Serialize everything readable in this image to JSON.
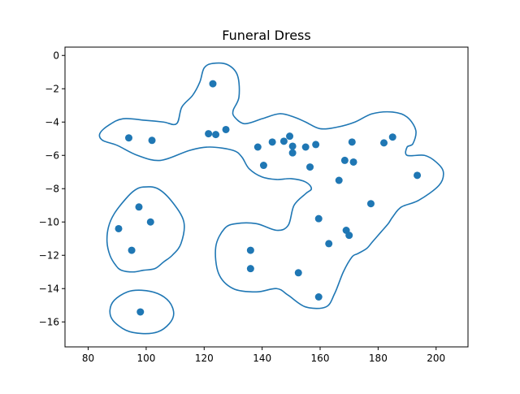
{
  "chart_data": {
    "type": "scatter",
    "title": "Funeral Dress",
    "xlabel": "",
    "ylabel": "",
    "xlim": [
      72,
      211
    ],
    "ylim": [
      -17.5,
      0.5
    ],
    "xticks": [
      80,
      100,
      120,
      140,
      160,
      180,
      200
    ],
    "yticks": [
      0,
      -2,
      -4,
      -6,
      -8,
      -10,
      -12,
      -14,
      -16
    ],
    "grid": false,
    "colors": {
      "series": "#1f77b4",
      "axis": "#000000",
      "background": "#ffffff"
    },
    "series": [
      {
        "points": [
          [
            123,
            -1.7
          ],
          [
            94,
            -4.95
          ],
          [
            102,
            -5.1
          ],
          [
            121.5,
            -4.7
          ],
          [
            124,
            -4.75
          ],
          [
            127.5,
            -4.45
          ],
          [
            138.5,
            -5.5
          ],
          [
            143.5,
            -5.2
          ],
          [
            147.5,
            -5.15
          ],
          [
            149.5,
            -4.85
          ],
          [
            150.5,
            -5.45
          ],
          [
            150.5,
            -5.85
          ],
          [
            155,
            -5.5
          ],
          [
            158.5,
            -5.35
          ],
          [
            140.5,
            -6.6
          ],
          [
            156.5,
            -6.7
          ],
          [
            168.5,
            -6.3
          ],
          [
            171,
            -5.2
          ],
          [
            171.5,
            -6.4
          ],
          [
            182,
            -5.25
          ],
          [
            185,
            -4.9
          ],
          [
            193.5,
            -7.2
          ],
          [
            166.5,
            -7.5
          ],
          [
            177.5,
            -8.9
          ],
          [
            159.5,
            -9.8
          ],
          [
            169,
            -10.5
          ],
          [
            170,
            -10.8
          ],
          [
            163,
            -11.3
          ],
          [
            136,
            -11.7
          ],
          [
            136,
            -12.8
          ],
          [
            152.5,
            -13.05
          ],
          [
            159.5,
            -14.5
          ],
          [
            97.5,
            -9.1
          ],
          [
            101.5,
            -10.0
          ],
          [
            90.5,
            -10.4
          ],
          [
            95,
            -11.7
          ],
          [
            98,
            -15.4
          ]
        ]
      }
    ],
    "contours": [
      [
        [
          110.5,
          -4.1
        ],
        [
          112.3,
          -3.1
        ],
        [
          116,
          -2.4
        ],
        [
          118.5,
          -1.6
        ],
        [
          120,
          -0.75
        ],
        [
          123,
          -0.48
        ],
        [
          128,
          -0.55
        ],
        [
          131.5,
          -1.2
        ],
        [
          132,
          -2.5
        ],
        [
          130,
          -3.3
        ],
        [
          130.5,
          -3.7
        ],
        [
          134,
          -4.1
        ],
        [
          140,
          -3.8
        ],
        [
          146,
          -3.5
        ],
        [
          151,
          -3.7
        ],
        [
          155,
          -4.0
        ],
        [
          160,
          -4.4
        ],
        [
          166,
          -4.3
        ],
        [
          172,
          -4.0
        ],
        [
          178,
          -3.5
        ],
        [
          185,
          -3.4
        ],
        [
          190,
          -3.7
        ],
        [
          193,
          -4.5
        ],
        [
          192,
          -5.3
        ],
        [
          190,
          -5.5
        ],
        [
          190,
          -6.0
        ],
        [
          196,
          -6.0
        ],
        [
          200,
          -6.4
        ],
        [
          202.5,
          -7.0
        ],
        [
          201,
          -7.8
        ],
        [
          194,
          -8.7
        ],
        [
          188,
          -9.1
        ],
        [
          185,
          -9.7
        ],
        [
          183.5,
          -10.1
        ],
        [
          181,
          -10.6
        ],
        [
          178,
          -11.2
        ],
        [
          176,
          -11.6
        ],
        [
          173,
          -11.9
        ],
        [
          171,
          -12.1
        ],
        [
          168,
          -13.0
        ],
        [
          165,
          -14.3
        ],
        [
          162,
          -15.1
        ],
        [
          155,
          -15.1
        ],
        [
          149,
          -14.4
        ],
        [
          145,
          -14.0
        ],
        [
          138,
          -14.2
        ],
        [
          130,
          -14.0
        ],
        [
          125,
          -13.1
        ],
        [
          124,
          -11.5
        ],
        [
          127,
          -10.4
        ],
        [
          131,
          -10.1
        ],
        [
          138,
          -10.1
        ],
        [
          145,
          -10.5
        ],
        [
          149,
          -10.2
        ],
        [
          151,
          -9.0
        ],
        [
          155,
          -8.3
        ],
        [
          157,
          -8.0
        ],
        [
          155,
          -7.6
        ],
        [
          150,
          -7.4
        ],
        [
          145,
          -7.45
        ],
        [
          140,
          -7.3
        ],
        [
          135.5,
          -6.8
        ],
        [
          133,
          -6.1
        ],
        [
          130,
          -5.7
        ],
        [
          122,
          -5.5
        ],
        [
          115,
          -5.7
        ],
        [
          105,
          -6.3
        ],
        [
          97,
          -6.0
        ],
        [
          90,
          -5.4
        ],
        [
          85,
          -5.1
        ],
        [
          84,
          -4.7
        ],
        [
          87,
          -4.2
        ],
        [
          92,
          -3.8
        ],
        [
          100,
          -3.9
        ],
        [
          106,
          -4.0
        ],
        [
          110.5,
          -4.1
        ]
      ],
      [
        [
          99,
          -7.9
        ],
        [
          104,
          -8.0
        ],
        [
          109,
          -8.8
        ],
        [
          113,
          -10.0
        ],
        [
          112,
          -11.3
        ],
        [
          109,
          -12.0
        ],
        [
          106,
          -12.4
        ],
        [
          103,
          -12.8
        ],
        [
          99,
          -12.9
        ],
        [
          95.5,
          -13.0
        ],
        [
          91.5,
          -12.9
        ],
        [
          89.5,
          -12.6
        ],
        [
          87.5,
          -12.0
        ],
        [
          86.5,
          -11.2
        ],
        [
          87,
          -10.3
        ],
        [
          89,
          -9.5
        ],
        [
          93,
          -8.6
        ],
        [
          96,
          -8.1
        ],
        [
          99,
          -7.9
        ]
      ],
      [
        [
          98.5,
          -14.1
        ],
        [
          104,
          -14.3
        ],
        [
          108,
          -14.8
        ],
        [
          109.5,
          -15.5
        ],
        [
          108,
          -16.1
        ],
        [
          104,
          -16.6
        ],
        [
          98.5,
          -16.7
        ],
        [
          93,
          -16.5
        ],
        [
          88.5,
          -15.9
        ],
        [
          87.5,
          -15.3
        ],
        [
          89,
          -14.7
        ],
        [
          93.5,
          -14.2
        ],
        [
          98.5,
          -14.1
        ]
      ]
    ]
  }
}
